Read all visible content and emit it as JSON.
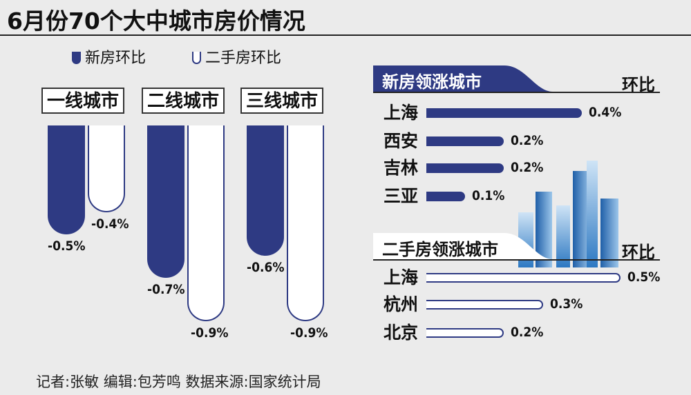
{
  "title": "6月份70个大中城市房价情况",
  "legend": {
    "new": "新房环比",
    "second": "二手房环比"
  },
  "colors": {
    "new_fill": "#2e3a83",
    "second_fill": "#ffffff",
    "background": "#ebebeb"
  },
  "chart_data": [
    {
      "type": "bar",
      "categories": [
        "一线城市",
        "二线城市",
        "三线城市"
      ],
      "series": [
        {
          "name": "新房环比",
          "values": [
            -0.5,
            -0.7,
            -0.6
          ],
          "labels": [
            "-0.5%",
            "-0.7%",
            "-0.6%"
          ]
        },
        {
          "name": "二手房环比",
          "values": [
            -0.4,
            -0.9,
            -0.9
          ],
          "labels": [
            "-0.4%",
            "-0.9%",
            "-0.9%"
          ]
        }
      ],
      "unit": "%"
    },
    {
      "type": "bar",
      "orientation": "horizontal",
      "title": "新房领涨城市",
      "ylabel": "环比",
      "categories": [
        "上海",
        "西安",
        "吉林",
        "三亚"
      ],
      "values": [
        0.4,
        0.2,
        0.2,
        0.1
      ],
      "labels": [
        "0.4%",
        "0.2%",
        "0.2%",
        "0.1%"
      ]
    },
    {
      "type": "bar",
      "orientation": "horizontal",
      "title": "二手房领涨城市",
      "ylabel": "环比",
      "categories": [
        "上海",
        "杭州",
        "北京"
      ],
      "values": [
        0.5,
        0.3,
        0.2
      ],
      "labels": [
        "0.5%",
        "0.3%",
        "0.2%"
      ]
    }
  ],
  "footer": "记者:张敏  编辑:包芳鸣    数据来源:国家统计局"
}
